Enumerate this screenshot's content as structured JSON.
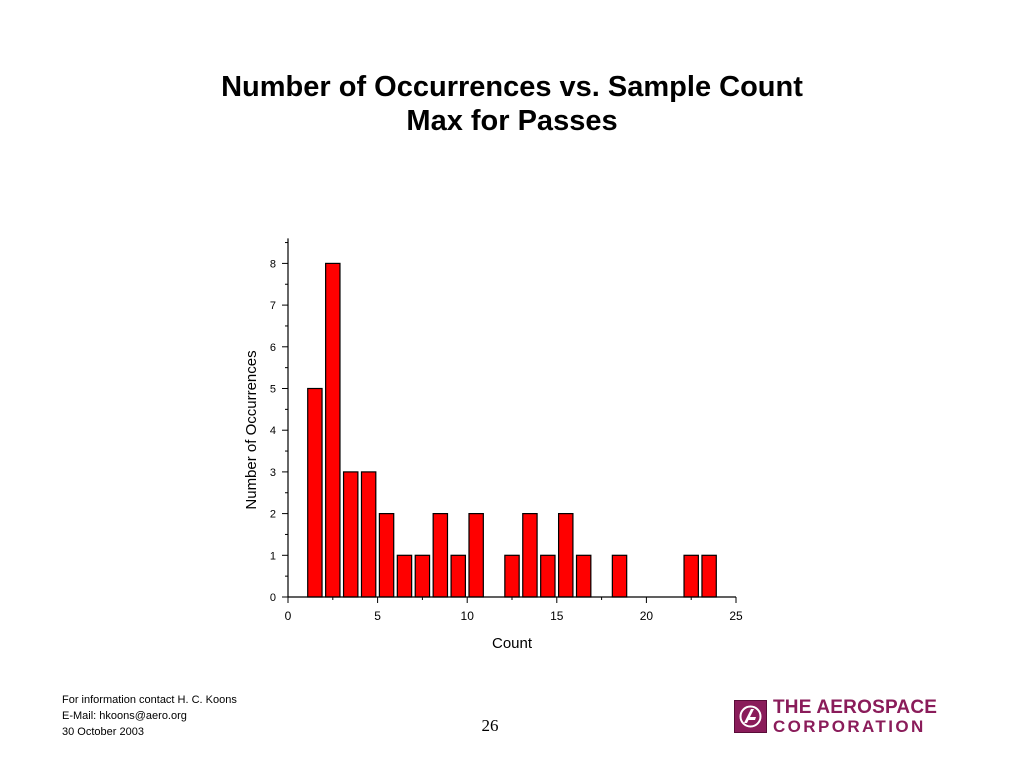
{
  "slide": {
    "title_line1": "Number of Occurrences vs. Sample Count",
    "title_line2": "Max for Passes",
    "page_number": "26"
  },
  "footer": {
    "contact": "For information contact H. C. Koons",
    "email": "E-Mail: hkoons@aero.org",
    "date": "30 October 2003"
  },
  "logo": {
    "line1": "THE AEROSPACE",
    "line2": "CORPORATION",
    "icon": "aerospace-logo-icon",
    "color": "#8a1c5a"
  },
  "chart_data": {
    "type": "bar",
    "title": "",
    "xlabel": "Count",
    "ylabel": "Number of Occurrences",
    "xlim": [
      0,
      25
    ],
    "ylim": [
      0,
      8.6
    ],
    "x_ticks": [
      0,
      5,
      10,
      15,
      20,
      25
    ],
    "y_ticks": [
      0,
      1,
      2,
      3,
      4,
      5,
      6,
      7,
      8
    ],
    "grid": false,
    "bar_color": "#ff0000",
    "bar_width": 0.8,
    "x": [
      1.5,
      2.5,
      3.5,
      4.5,
      5.5,
      6.5,
      7.5,
      8.5,
      9.5,
      10.5,
      12.5,
      13.5,
      14.5,
      15.5,
      16.5,
      18.5,
      22.5,
      23.5
    ],
    "values": [
      5,
      8,
      3,
      3,
      2,
      1,
      1,
      2,
      1,
      2,
      1,
      2,
      1,
      2,
      1,
      1,
      1,
      1
    ]
  }
}
